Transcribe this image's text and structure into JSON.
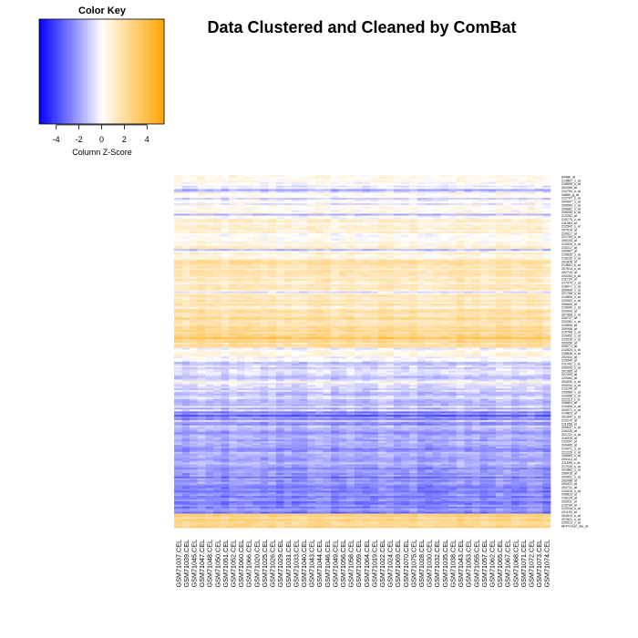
{
  "chart_data": {
    "type": "heatmap",
    "title": "Data Clustered and Cleaned by ComBat",
    "color_key": {
      "title": "Color Key",
      "xlabel": "Column Z-Score",
      "ticks": [
        -4,
        -2,
        0,
        2,
        4
      ],
      "range": [
        -5.5,
        5.5
      ],
      "low_color": "#0000ff",
      "mid_color": "#ffffff",
      "high_color": "#ffa500"
    },
    "columns": [
      "GSM71037.CEL",
      "GSM71039.CEL",
      "GSM71045.CEL",
      "GSM71047.CEL",
      "GSM71048.CEL",
      "GSM71050.CEL",
      "GSM71051.CEL",
      "GSM71052.CEL",
      "GSM71060.CEL",
      "GSM71066.CEL",
      "GSM71020.CEL",
      "GSM71025.CEL",
      "GSM71026.CEL",
      "GSM71029.CEL",
      "GSM71031.CEL",
      "GSM71033.CEL",
      "GSM71040.CEL",
      "GSM71043.CEL",
      "GSM71044.CEL",
      "GSM71046.CEL",
      "GSM71049.CEL",
      "GSM71056.CEL",
      "GSM71058.CEL",
      "GSM71059.CEL",
      "GSM71064.CEL",
      "GSM71019.CEL",
      "GSM71022.CEL",
      "GSM71024.CEL",
      "GSM71069.CEL",
      "GSM71070.CEL",
      "GSM71075.CEL",
      "GSM71028.CEL",
      "GSM71030.CEL",
      "GSM71032.CEL",
      "GSM71035.CEL",
      "GSM71038.CEL",
      "GSM71043.CEL",
      "GSM71053.CEL",
      "GSM71055.CEL",
      "GSM71057.CEL",
      "GSM71062.CEL",
      "GSM71065.CEL",
      "GSM71067.CEL",
      "GSM71068.CEL",
      "GSM71071.CEL",
      "GSM71072.CEL",
      "GSM71073.CEL",
      "GSM71074.CEL"
    ],
    "row_labels": [
      "64486_at",
      "214807_x_at",
      "218595_s_at",
      "204280_at",
      "210794_s_at",
      "34860_g_at",
      "212707_s_at",
      "204597_x_at",
      "208563_x_at",
      "204681_s_at",
      "209093_s_at",
      "213262_at",
      "215775_x_at",
      "211064_at",
      "212542_s_at",
      "207616_at",
      "219917_at",
      "221754_s_at",
      "205103_at",
      "213920_s_at",
      "210217_at",
      "205467_at",
      "210835_s_at",
      "216232_s_at",
      "201876_at",
      "214651_s_at",
      "207614_s_at",
      "202710_at",
      "204253_s_at",
      "211720_at",
      "217374_x_at",
      "218071_s_at",
      "209499_x_at",
      "221766_s_at",
      "214800_x_at",
      "220503_s_at",
      "206600_at",
      "215090_x_at",
      "203993_at",
      "207966_s_at",
      "208737_at",
      "220282_s_at",
      "215809_at",
      "209906_at",
      "210766_s_at",
      "215452_x_at",
      "219316_s_at",
      "203050_at",
      "208271_at",
      "212823_s_at",
      "216836_s_at",
      "202431_at",
      "215040_at",
      "211362_s_at",
      "205993_s_at",
      "201365_at",
      "207403_at",
      "220062_at",
      "204530_s_at",
      "203232_s_at",
      "213106_at",
      "203989_x_at",
      "214356_s_at",
      "222113_s_at",
      "206801_at",
      "210405_x_at",
      "204071_s_at",
      "214820_at",
      "201842_s_at",
      "213170_at",
      "211958_at",
      "209637_s_at",
      "216225_at",
      "201722_s_at",
      "218329_at",
      "212097_at",
      "203485_at",
      "210071_s_at",
      "221220_s_at",
      "205580_s_at",
      "204110_at",
      "211599_x_at",
      "217020_s_at",
      "201883_s_at",
      "208418_at",
      "203521_s_at",
      "202088_at",
      "205421_at",
      "204731_at",
      "210415_s_at",
      "206813_at",
      "218124_at",
      "203011_at",
      "219700_at",
      "212044_s_at",
      "201193_at",
      "204910_s_at",
      "207821_s_at",
      "220313_x_at",
      "AFFX-hum_alu_at"
    ],
    "n_rows": 200,
    "row_profile": [
      {
        "from": 0.0,
        "to": 0.03,
        "z": 0.2
      },
      {
        "from": 0.03,
        "to": 0.09,
        "z": -0.3
      },
      {
        "from": 0.09,
        "to": 0.24,
        "z": 0.6
      },
      {
        "from": 0.24,
        "to": 0.4,
        "z": 1.4
      },
      {
        "from": 0.4,
        "to": 0.49,
        "z": 2.0
      },
      {
        "from": 0.49,
        "to": 0.53,
        "z": 0.1
      },
      {
        "from": 0.53,
        "to": 0.67,
        "z": -1.0
      },
      {
        "from": 0.67,
        "to": 0.83,
        "z": -2.0
      },
      {
        "from": 0.83,
        "to": 0.96,
        "z": -2.6
      },
      {
        "from": 0.96,
        "to": 1.0,
        "z": 2.4
      }
    ]
  }
}
